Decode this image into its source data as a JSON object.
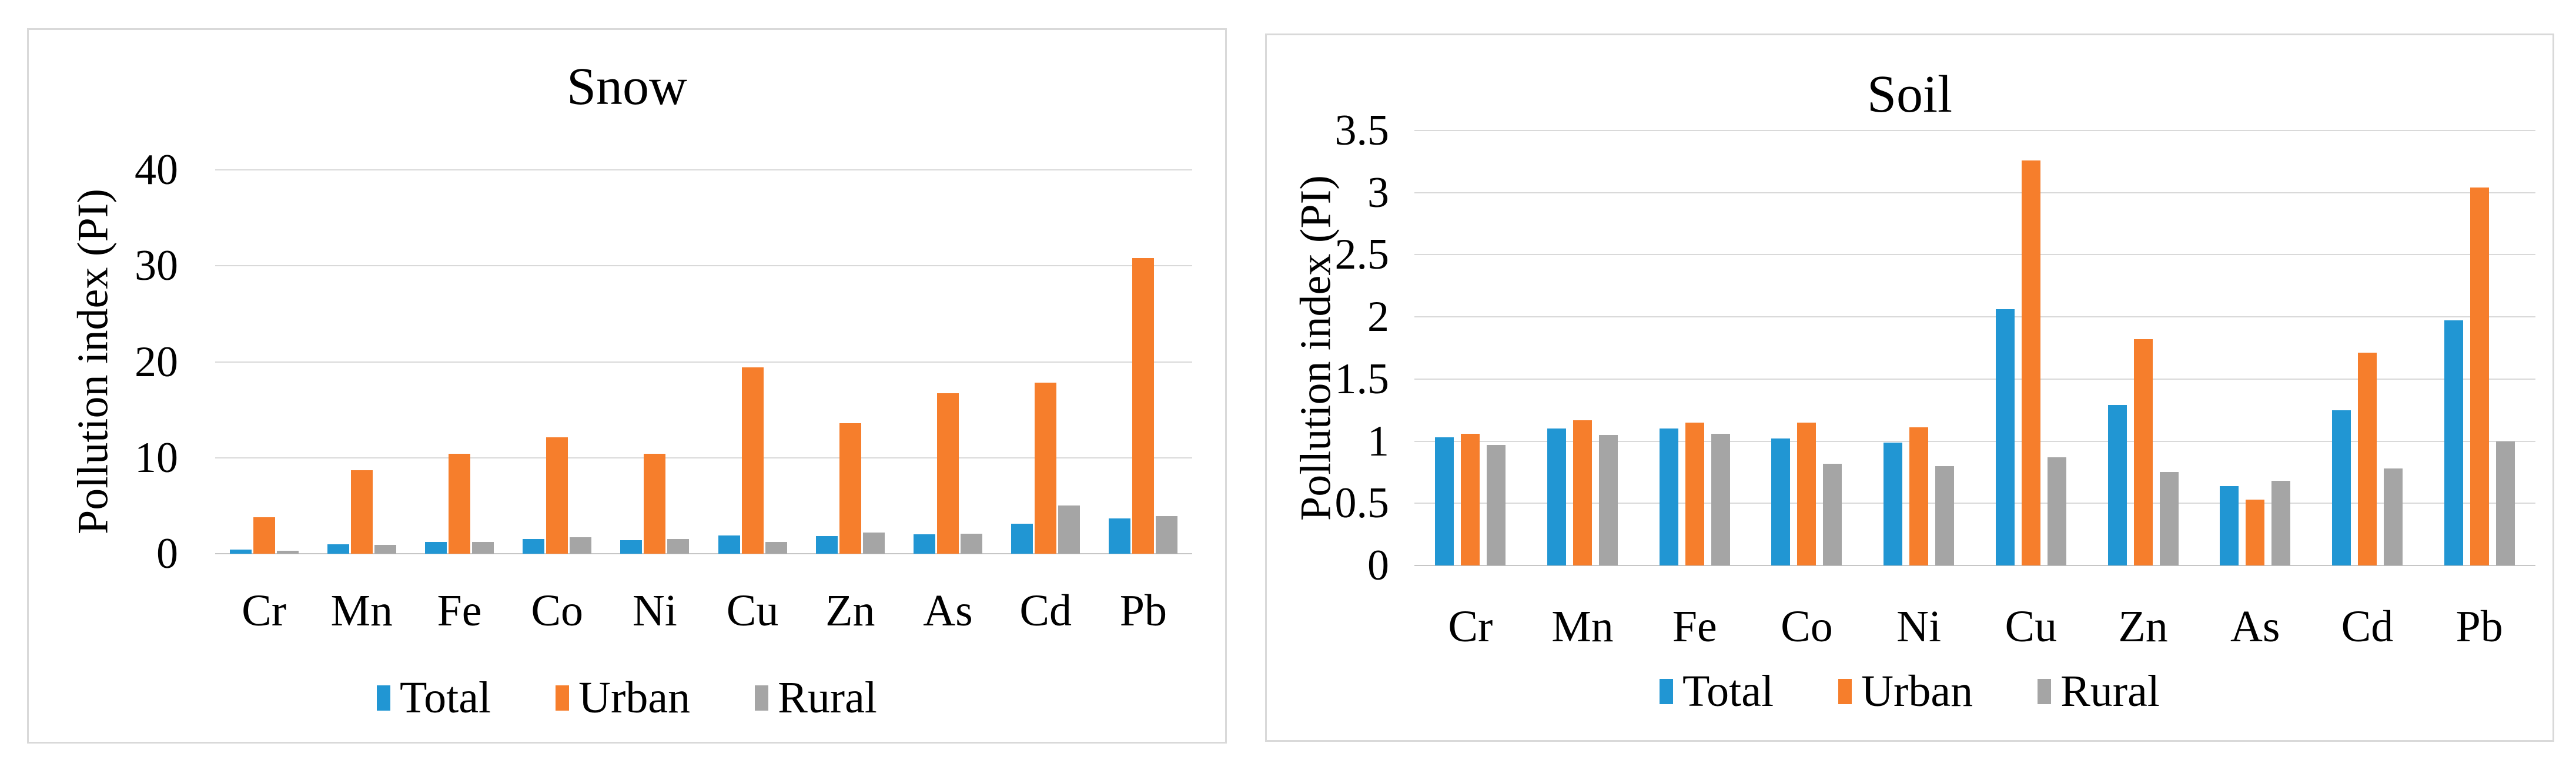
{
  "chart_data": [
    {
      "type": "bar",
      "title": "Snow",
      "ylabel": "Pollution index (PI)",
      "xlabel": "",
      "ylim": [
        0,
        40
      ],
      "y_tick_labels": [
        "0",
        "10",
        "20",
        "30",
        "40"
      ],
      "y_tick_values": [
        0,
        10,
        20,
        30,
        40
      ],
      "grid": true,
      "legend_position": "bottom",
      "categories": [
        "Cr",
        "Mn",
        "Fe",
        "Co",
        "Ni",
        "Cu",
        "Zn",
        "As",
        "Cd",
        "Pb"
      ],
      "series": [
        {
          "name": "Total",
          "color": "#2196D3",
          "values": [
            0.4,
            0.95,
            1.25,
            1.55,
            1.4,
            1.9,
            1.85,
            2.0,
            3.1,
            3.7
          ]
        },
        {
          "name": "Urban",
          "color": "#F67E2C",
          "values": [
            3.8,
            8.7,
            10.4,
            12.1,
            10.4,
            19.4,
            13.6,
            16.7,
            17.8,
            30.8
          ]
        },
        {
          "name": "Rural",
          "color": "#A5A5A5",
          "values": [
            0.3,
            0.9,
            1.25,
            1.7,
            1.55,
            1.2,
            2.2,
            2.1,
            5.0,
            3.9
          ]
        }
      ]
    },
    {
      "type": "bar",
      "title": "Soil",
      "ylabel": "Pollution index (PI)",
      "xlabel": "",
      "ylim": [
        0,
        3.5
      ],
      "y_tick_labels": [
        "0",
        "0.5",
        "1",
        "1.5",
        "2",
        "2.5",
        "3",
        "3.5"
      ],
      "y_tick_values": [
        0,
        0.5,
        1,
        1.5,
        2,
        2.5,
        3,
        3.5
      ],
      "grid": true,
      "legend_position": "bottom",
      "categories": [
        "Cr",
        "Mn",
        "Fe",
        "Co",
        "Ni",
        "Cu",
        "Zn",
        "As",
        "Cd",
        "Pb"
      ],
      "series": [
        {
          "name": "Total",
          "color": "#2196D3",
          "values": [
            1.03,
            1.1,
            1.1,
            1.02,
            0.99,
            2.06,
            1.29,
            0.64,
            1.25,
            1.97
          ]
        },
        {
          "name": "Urban",
          "color": "#F67E2C",
          "values": [
            1.06,
            1.17,
            1.15,
            1.15,
            1.11,
            3.26,
            1.82,
            0.53,
            1.71,
            3.04
          ]
        },
        {
          "name": "Rural",
          "color": "#A5A5A5",
          "values": [
            0.97,
            1.05,
            1.06,
            0.82,
            0.8,
            0.87,
            0.75,
            0.68,
            0.78,
            1.0
          ]
        }
      ]
    }
  ],
  "colors": {
    "total": "#2196D3",
    "urban": "#F67E2C",
    "rural": "#A5A5A5",
    "gridline": "#d9d9d9",
    "panel_border": "#d9d9d9"
  }
}
